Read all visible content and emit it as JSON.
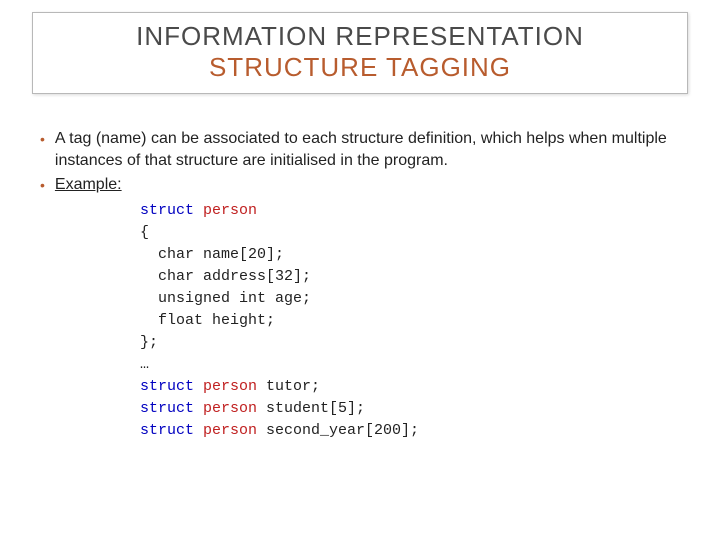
{
  "title": {
    "line1": "INFORMATION REPRESENTATION",
    "line2": "STRUCTURE TAGGING",
    "color_line1": "#4a4a4a",
    "color_line2": "#b85c2e",
    "border_color": "#b8b8b8",
    "fontsize": 26
  },
  "bullets": [
    {
      "text": "A tag (name) can be associated to each structure definition, which helps when multiple instances of that structure are initialised in the program."
    },
    {
      "text": "Example:",
      "underline": true
    }
  ],
  "bullet_color": "#b85c2e",
  "code": {
    "keyword_color": "#0000c0",
    "tag_color": "#c02020",
    "text_color": "#222222",
    "lines": [
      {
        "kw": "struct",
        "tag": " person",
        "rest": ""
      },
      {
        "rest": "{",
        "noKw": true
      },
      {
        "rest": "char name[20];",
        "indent": true,
        "noKw": true
      },
      {
        "rest": "char address[32];",
        "indent": true,
        "noKw": true
      },
      {
        "rest": "unsigned int age;",
        "indent": true,
        "noKw": true
      },
      {
        "rest": "float height;",
        "indent": true,
        "noKw": true
      },
      {
        "rest": "};",
        "noKw": true
      },
      {
        "rest": "…",
        "noKw": true
      },
      {
        "kw": "struct",
        "tag": " person",
        "rest": " tutor;"
      },
      {
        "kw": "struct",
        "tag": " person",
        "rest": " student[5];"
      },
      {
        "kw": "struct",
        "tag": " person",
        "rest": " second_year[200];"
      }
    ]
  }
}
